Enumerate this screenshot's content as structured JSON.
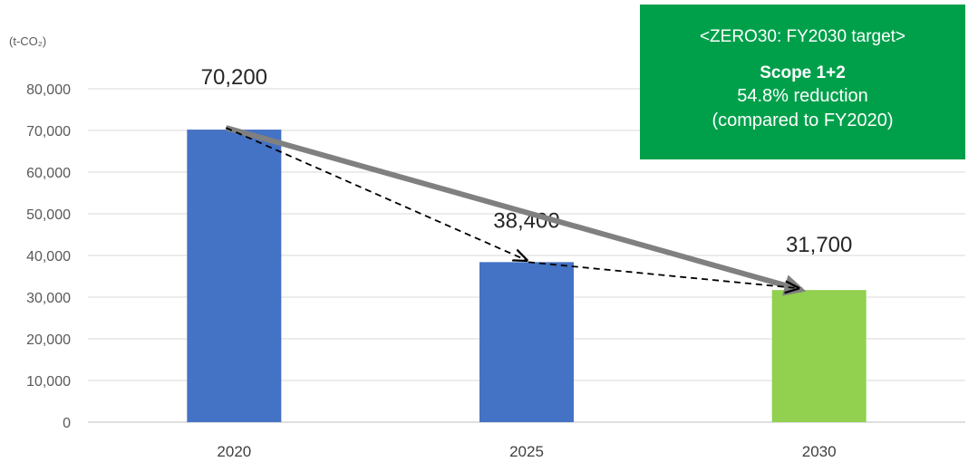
{
  "unit_label": "(t-CO₂)",
  "target_box": {
    "title": "<ZERO30: FY2030 target>",
    "scope": "Scope 1+2",
    "reduction": "54.8% reduction",
    "comparison": "(compared to FY2020)"
  },
  "colors": {
    "actual": "#4472c4",
    "target": "#92d050",
    "box": "#00a04b",
    "trend_arrow": "#808080"
  },
  "chart_data": {
    "type": "bar",
    "title": "",
    "xlabel": "",
    "ylabel": "(t-CO₂)",
    "categories": [
      "2020",
      "2025",
      "2030"
    ],
    "values": [
      70200,
      38400,
      31700
    ],
    "data_labels": [
      "70,200",
      "38,400",
      "31,700"
    ],
    "bar_colors": [
      "#4472c4",
      "#4472c4",
      "#92d050"
    ],
    "ylim": [
      0,
      80000
    ],
    "yticks": [
      0,
      10000,
      20000,
      30000,
      40000,
      50000,
      60000,
      70000,
      80000
    ],
    "ytick_labels": [
      "0",
      "10,000",
      "20,000",
      "30,000",
      "40,000",
      "50,000",
      "60,000",
      "70,000",
      "80,000"
    ],
    "grid": true,
    "annotations": [
      {
        "type": "arrow",
        "style": "solid-gray-thick",
        "from": "2020",
        "to": "2030"
      },
      {
        "type": "arrow",
        "style": "dashed-black",
        "from": "2020",
        "to": "2025"
      },
      {
        "type": "arrow",
        "style": "dashed-black",
        "from": "2025",
        "to": "2030"
      }
    ]
  }
}
